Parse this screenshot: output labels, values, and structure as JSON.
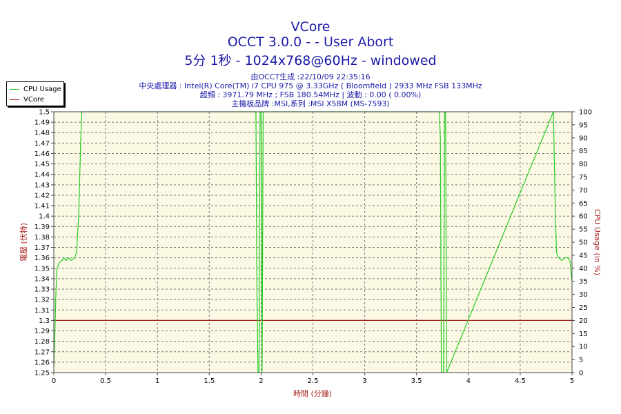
{
  "header": {
    "title": "VCore",
    "subtitle1": "OCCT 3.0.0 -  - User Abort",
    "subtitle2": "5分 1秒 - 1024x768@60Hz - windowed",
    "info_lines": [
      "由OCCT生成 :22/10/09 22:35:16",
      "中央處理器 : Intel(R) Core(TM) i7 CPU 975 @ 3.33GHz ( Bloomfield ) 2933 MHz FSB 133MHz",
      "超頻 : 3971.79 MHz ; FSB 180.54MHz | 波動 : 0.00 ( 0.00%)",
      "主機板品牌 :MSI,系列 :MSI X58M (MS-7593)"
    ]
  },
  "legend": {
    "items": [
      {
        "label": "CPU Usage",
        "color": "#22cc22"
      },
      {
        "label": "VCore",
        "color": "#aa2222"
      }
    ]
  },
  "chart_data": {
    "type": "line",
    "title": "VCore",
    "xlabel": "時間 (分鐘)",
    "ylabel_left": "電壓 (伏特)",
    "ylabel_right": "CPU Usage (in %)",
    "xlim": [
      0,
      5
    ],
    "ylim_left": [
      1.25,
      1.5
    ],
    "ylim_right": [
      0,
      100
    ],
    "x_ticks": [
      "0",
      "0.5",
      "1",
      "1.5",
      "2",
      "2.5",
      "3",
      "3.5",
      "4",
      "4.5",
      "5"
    ],
    "x_tick_values": [
      0,
      0.5,
      1,
      1.5,
      2,
      2.5,
      3,
      3.5,
      4,
      4.5,
      5
    ],
    "y_left_ticks": [
      "1.25",
      "1.26",
      "1.27",
      "1.28",
      "1.29",
      "1.3",
      "1.31",
      "1.32",
      "1.33",
      "1.34",
      "1.35",
      "1.36",
      "1.37",
      "1.38",
      "1.39",
      "1.4",
      "1.41",
      "1.42",
      "1.43",
      "1.44",
      "1.45",
      "1.46",
      "1.47",
      "1.48",
      "1.49",
      "1.5"
    ],
    "y_right_ticks": [
      "0",
      "5",
      "10",
      "15",
      "20",
      "25",
      "30",
      "35",
      "40",
      "45",
      "50",
      "55",
      "60",
      "65",
      "70",
      "75",
      "80",
      "85",
      "90",
      "95",
      "100"
    ],
    "grid": true,
    "legend_position": "top-left",
    "series": [
      {
        "name": "VCore",
        "axis": "left",
        "color": "#aa2222",
        "x": [
          0,
          5
        ],
        "y": [
          1.3,
          1.3
        ]
      },
      {
        "name": "CPU Usage",
        "axis": "right",
        "color": "#22cc22",
        "x": [
          0,
          0.01,
          0.02,
          0.03,
          0.05,
          0.08,
          0.1,
          0.12,
          0.14,
          0.17,
          0.2,
          0.22,
          0.24,
          0.26,
          0.27,
          1.95,
          1.96,
          1.97,
          1.98,
          1.99,
          2.0,
          2.01,
          2.02,
          3.72,
          3.73,
          3.74,
          3.75,
          3.76,
          3.77,
          3.78,
          3.79,
          4.82,
          4.83,
          4.84,
          4.85,
          4.87,
          4.9,
          4.93,
          4.96,
          4.98,
          5.0
        ],
        "y": [
          2,
          15,
          30,
          40,
          42,
          43,
          44,
          43,
          44,
          43,
          44,
          46,
          60,
          90,
          100,
          100,
          30,
          0,
          0,
          100,
          100,
          0,
          100,
          100,
          90,
          0,
          0,
          0,
          100,
          100,
          0,
          100,
          80,
          60,
          46,
          44,
          43,
          44,
          44,
          43,
          35
        ]
      }
    ]
  }
}
